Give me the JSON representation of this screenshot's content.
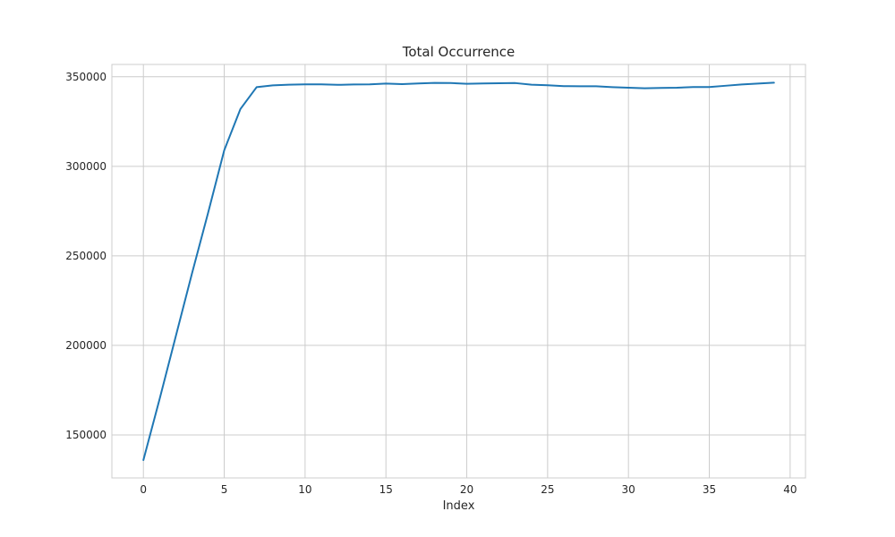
{
  "chart_data": {
    "type": "line",
    "title": "Total Occurrence",
    "xlabel": "Index",
    "ylabel": "",
    "xlim": [
      -1.95,
      40.95
    ],
    "ylim": [
      126000,
      356900
    ],
    "xticks": [
      0,
      5,
      10,
      15,
      20,
      25,
      30,
      35,
      40
    ],
    "yticks": [
      150000,
      200000,
      250000,
      300000,
      350000
    ],
    "grid": true,
    "legend": null,
    "colors": {
      "line": "#1f77b4",
      "grid": "#cccccc",
      "text": "#262626"
    },
    "series": [
      {
        "x": [
          0,
          1,
          2,
          3,
          4,
          5,
          6,
          7,
          8,
          9,
          10,
          11,
          12,
          13,
          14,
          15,
          16,
          17,
          18,
          19,
          20,
          21,
          22,
          23,
          24,
          25,
          26,
          27,
          28,
          29,
          30,
          31,
          32,
          33,
          34,
          35,
          36,
          37,
          38,
          39
        ],
        "values": [
          136000,
          170000,
          205000,
          240000,
          274000,
          309000,
          332000,
          344200,
          345200,
          345600,
          345800,
          345800,
          345500,
          345700,
          345800,
          346200,
          345900,
          346300,
          346600,
          346500,
          346100,
          346300,
          346400,
          346500,
          345600,
          345300,
          344800,
          344700,
          344700,
          344200,
          343900,
          343600,
          343800,
          343900,
          344300,
          344300,
          345000,
          345700,
          346200,
          346700
        ]
      }
    ]
  }
}
